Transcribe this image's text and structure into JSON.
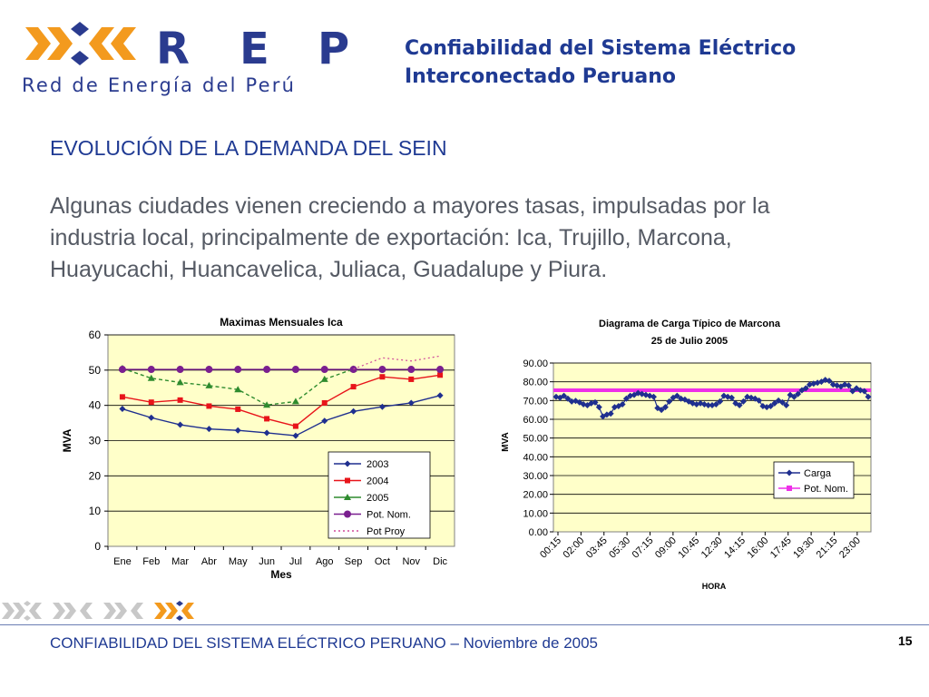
{
  "logo": {
    "letters": "R E P",
    "subtitle": "Red de Energía del Perú"
  },
  "header": {
    "title_line1": "Confiabilidad del Sistema Eléctrico",
    "title_line2": "Interconectado Peruano"
  },
  "main": {
    "heading": "EVOLUCIÓN DE LA DEMANDA DEL SEIN",
    "body": "Algunas ciudades vienen creciendo a mayores tasas, impulsadas por la industria local, principalmente de exportación: Ica, Trujillo, Marcona, Huayucachi, Huancavelica, Juliaca, Guadalupe y Piura."
  },
  "footer": {
    "text": "CONFIABILIDAD DEL SISTEMA ELÉCTRICO PERUANO – Noviembre de 2005",
    "page": "15"
  },
  "colors": {
    "brand_orange": "#f39a1e",
    "brand_blue": "#2a3b8f",
    "plot_bg": "#ffffc9"
  },
  "chart_data": [
    {
      "type": "line",
      "title": "Maximas Mensuales Ica",
      "xlabel": "Mes",
      "ylabel": "MVA",
      "ylim": [
        0,
        60
      ],
      "yticks": [
        0,
        10,
        20,
        30,
        40,
        50,
        60
      ],
      "categories": [
        "Ene",
        "Feb",
        "Mar",
        "Abr",
        "May",
        "Jun",
        "Jul",
        "Ago",
        "Sep",
        "Oct",
        "Nov",
        "Dic"
      ],
      "grid": true,
      "legend_position": "bottom-right",
      "series": [
        {
          "name": "2003",
          "color": "#1f2f8f",
          "marker": "diamond",
          "dash": "",
          "values": [
            39,
            36.5,
            34.5,
            33.3,
            32.9,
            32.2,
            31.4,
            35.6,
            38.3,
            39.6,
            40.7,
            42.8
          ]
        },
        {
          "name": "2004",
          "color": "#e8141a",
          "marker": "square",
          "dash": "",
          "values": [
            42.4,
            40.9,
            41.5,
            39.8,
            38.9,
            36.2,
            34.1,
            40.7,
            45.3,
            48.1,
            47.4,
            48.6
          ]
        },
        {
          "name": "2005",
          "color": "#2e8b2e",
          "marker": "triangle",
          "dash": "4,3",
          "values": [
            50.5,
            47.7,
            46.5,
            45.6,
            44.5,
            40.1,
            41.1,
            47.4,
            50.3,
            null,
            null,
            null
          ]
        },
        {
          "name": "Pot. Nom.",
          "color": "#7a1f8f",
          "marker": "circle",
          "dash": "",
          "values": [
            50.2,
            50.2,
            50.2,
            50.2,
            50.2,
            50.2,
            50.2,
            50.2,
            50.2,
            50.2,
            50.2,
            50.2
          ]
        },
        {
          "name": "Pot Proy",
          "color": "#d04a9a",
          "marker": "none",
          "dash": "2,3",
          "values": [
            null,
            null,
            null,
            null,
            null,
            null,
            null,
            null,
            50.3,
            53.5,
            52.6,
            54.0
          ]
        }
      ]
    },
    {
      "type": "line",
      "title": "Diagrama de Carga Típico de Marcona",
      "subtitle": "25 de Julio 2005",
      "xlabel": "HORA",
      "ylabel": "MVA",
      "ylim": [
        0,
        90
      ],
      "yticks": [
        "0.00",
        "10.00",
        "20.00",
        "30.00",
        "40.00",
        "50.00",
        "60.00",
        "70.00",
        "80.00",
        "90.00"
      ],
      "xticks": [
        "00:15",
        "02:00",
        "03:45",
        "05:30",
        "07:15",
        "09:00",
        "10:45",
        "12:30",
        "14:15",
        "16:00",
        "17:45",
        "19:30",
        "21:15",
        "23:00"
      ],
      "grid": true,
      "legend_position": "right",
      "series": [
        {
          "name": "Carga",
          "color": "#1f2f8f",
          "marker": "diamond",
          "values": [
            72.0,
            71.5,
            72.5,
            71.0,
            69.5,
            69.8,
            69.0,
            68.0,
            67.5,
            68.5,
            69.0,
            66.5,
            61.5,
            62.5,
            63.0,
            66.5,
            67.0,
            68.0,
            71.0,
            72.5,
            73.0,
            74.0,
            73.5,
            73.0,
            72.5,
            72.0,
            66.0,
            65.0,
            66.5,
            69.5,
            71.5,
            72.5,
            71.0,
            70.5,
            69.5,
            68.5,
            68.0,
            68.5,
            68.0,
            67.5,
            67.5,
            68.0,
            69.5,
            72.5,
            72.0,
            71.5,
            68.5,
            67.5,
            69.5,
            72.0,
            71.5,
            71.0,
            70.0,
            67.0,
            66.5,
            67.0,
            68.5,
            70.0,
            69.0,
            67.5,
            73.0,
            72.0,
            73.5,
            75.5,
            76.5,
            78.5,
            79.0,
            79.5,
            80.0,
            81.0,
            80.5,
            78.5,
            78.0,
            77.5,
            78.5,
            78.0,
            75.0,
            76.5,
            75.5,
            75.0,
            72.0
          ]
        },
        {
          "name": "Pot. Nom.",
          "color": "#ee2fe8",
          "marker": "square",
          "values": [
            75.5,
            75.5
          ]
        }
      ]
    }
  ]
}
